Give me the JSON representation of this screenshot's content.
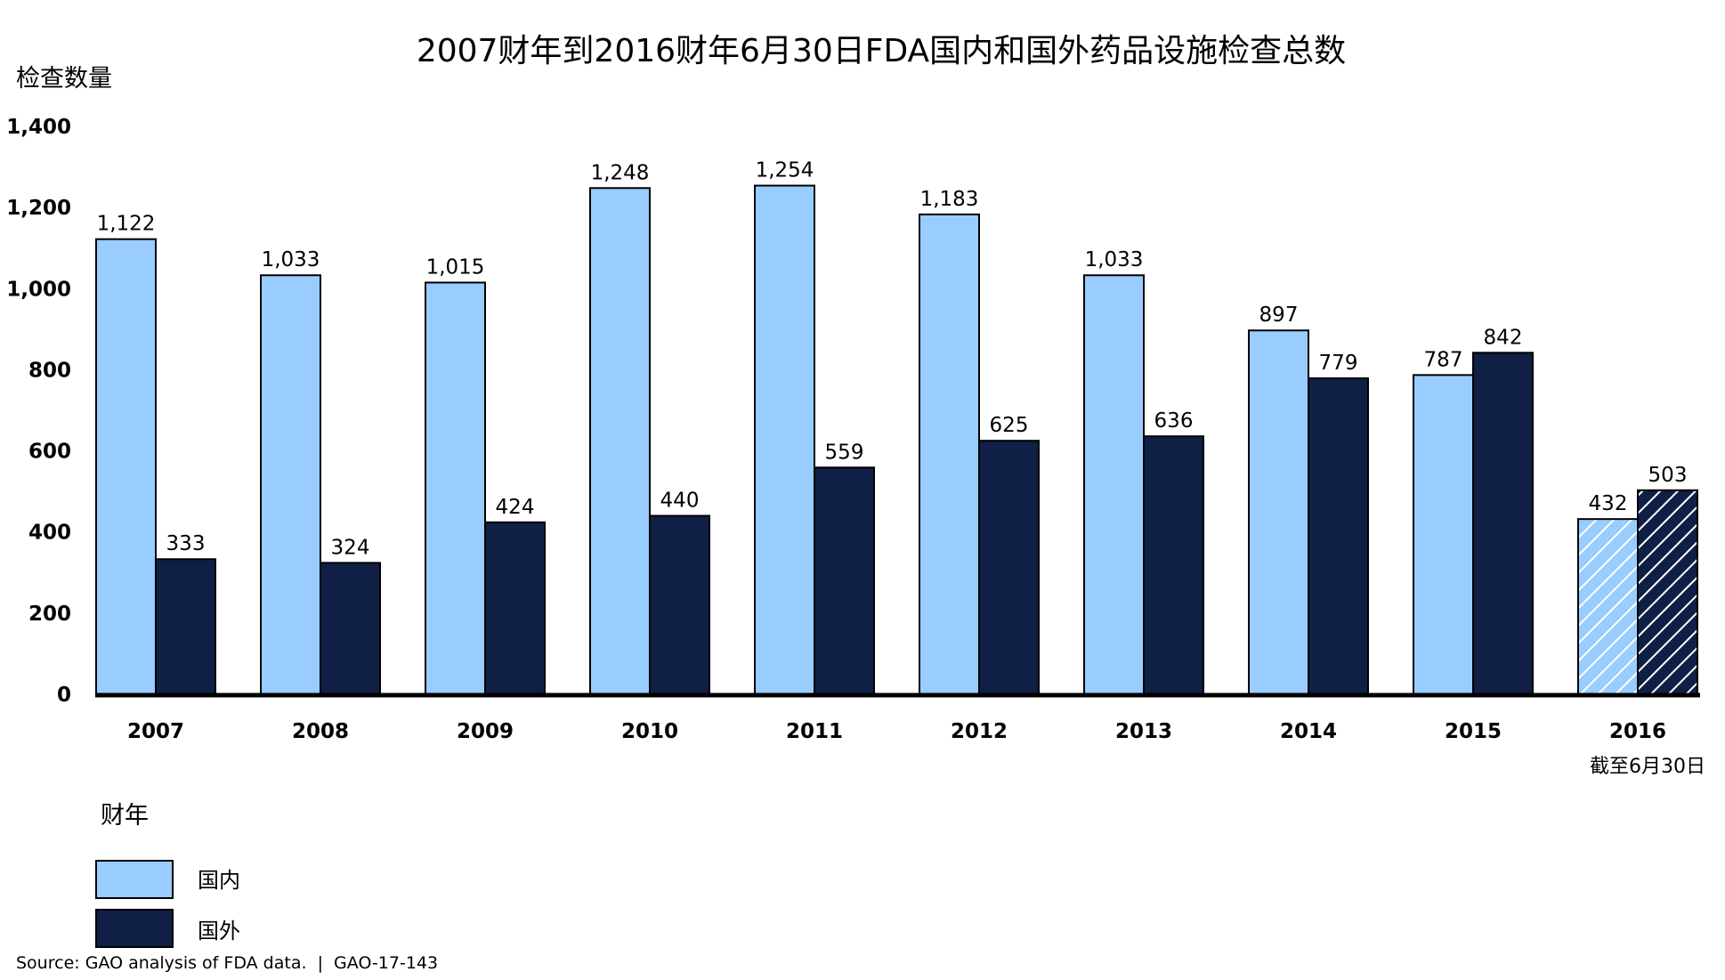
{
  "chart_data": {
    "type": "bar",
    "title": "2007财年到2016财年6月30日FDA国内和国外药品设施检查总数",
    "ylabel": "检查数量",
    "xlabel": "",
    "ylim": [
      0,
      1400
    ],
    "yticks": [
      "0",
      "200",
      "400",
      "600",
      "800",
      "1,000",
      "1,200",
      "1,400"
    ],
    "categories": [
      "2007",
      "2008",
      "2009",
      "2010",
      "2011",
      "2012",
      "2013",
      "2014",
      "2015",
      "2016"
    ],
    "series": [
      {
        "name": "国内",
        "color": "#99ccff",
        "values": [
          1122,
          1033,
          1015,
          1248,
          1254,
          1183,
          1033,
          897,
          787,
          432
        ],
        "labels": [
          "1,122",
          "1,033",
          "1,015",
          "1,248",
          "1,254",
          "1,183",
          "1,033",
          "897",
          "787",
          "432"
        ]
      },
      {
        "name": "国外",
        "color": "#101f45",
        "values": [
          333,
          324,
          424,
          440,
          559,
          625,
          636,
          779,
          842,
          503
        ],
        "labels": [
          "333",
          "324",
          "424",
          "440",
          "559",
          "625",
          "636",
          "779",
          "842",
          "503"
        ]
      }
    ],
    "partial_period": {
      "category": "2016",
      "note": "截至6月30日",
      "pattern": "hatched"
    },
    "legend": {
      "title": "财年",
      "position": "bottom-left"
    },
    "grid": false,
    "source": "Source: GAO analysis of FDA data.  |  GAO-17-143"
  }
}
